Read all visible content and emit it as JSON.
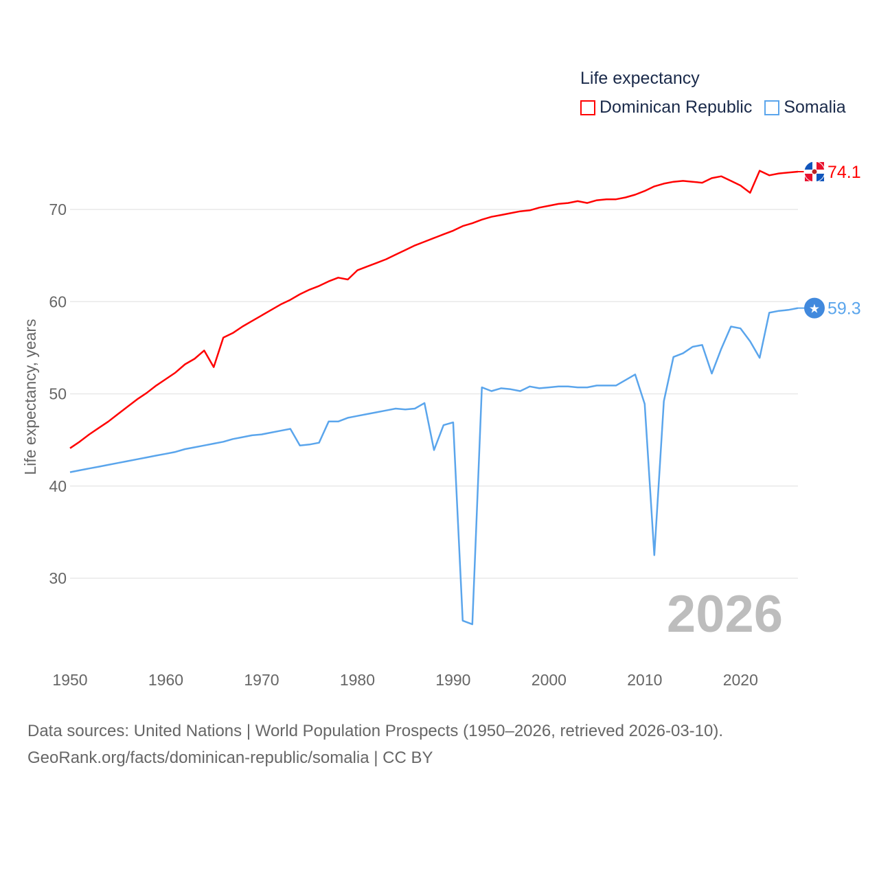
{
  "chart_data": {
    "type": "line",
    "title": "Life expectancy",
    "ylabel": "Life expectancy, years",
    "xlabel": "",
    "xlim": [
      1950,
      2026
    ],
    "ylim": [
      23,
      76
    ],
    "x_ticks": [
      1950,
      1960,
      1970,
      1980,
      1990,
      2000,
      2010,
      2020
    ],
    "y_ticks": [
      30,
      40,
      50,
      60,
      70
    ],
    "grid": true,
    "legend_position": "top-right",
    "year_watermark": "2026",
    "x": [
      1950,
      1951,
      1952,
      1953,
      1954,
      1955,
      1956,
      1957,
      1958,
      1959,
      1960,
      1961,
      1962,
      1963,
      1964,
      1965,
      1966,
      1967,
      1968,
      1969,
      1970,
      1971,
      1972,
      1973,
      1974,
      1975,
      1976,
      1977,
      1978,
      1979,
      1980,
      1981,
      1982,
      1983,
      1984,
      1985,
      1986,
      1987,
      1988,
      1989,
      1990,
      1991,
      1992,
      1993,
      1994,
      1995,
      1996,
      1997,
      1998,
      1999,
      2000,
      2001,
      2002,
      2003,
      2004,
      2005,
      2006,
      2007,
      2008,
      2009,
      2010,
      2011,
      2012,
      2013,
      2014,
      2015,
      2016,
      2017,
      2018,
      2019,
      2020,
      2021,
      2022,
      2023,
      2024,
      2025,
      2026
    ],
    "series": [
      {
        "name": "Dominican Republic",
        "color": "#ff0000",
        "end_label": "74.1",
        "marker_icon": "dominican-republic-flag-icon",
        "values": [
          44.1,
          44.8,
          45.6,
          46.3,
          47.0,
          47.8,
          48.6,
          49.4,
          50.1,
          50.9,
          51.6,
          52.3,
          53.2,
          53.8,
          54.7,
          52.9,
          56.1,
          56.6,
          57.3,
          57.9,
          58.5,
          59.1,
          59.7,
          60.2,
          60.8,
          61.3,
          61.7,
          62.2,
          62.6,
          62.4,
          63.4,
          63.8,
          64.2,
          64.6,
          65.1,
          65.6,
          66.1,
          66.5,
          66.9,
          67.3,
          67.7,
          68.2,
          68.5,
          68.9,
          69.2,
          69.4,
          69.6,
          69.8,
          69.9,
          70.2,
          70.4,
          70.6,
          70.7,
          70.9,
          70.7,
          71.0,
          71.1,
          71.1,
          71.3,
          71.6,
          72.0,
          72.5,
          72.8,
          73.0,
          73.1,
          73.0,
          72.9,
          73.4,
          73.6,
          73.1,
          72.6,
          71.8,
          74.2,
          73.7,
          73.9,
          74.0,
          74.1
        ]
      },
      {
        "name": "Somalia",
        "color": "#5aa5ec",
        "end_label": "59.3",
        "marker_icon": "somalia-flag-icon",
        "values": [
          41.5,
          41.7,
          41.9,
          42.1,
          42.3,
          42.5,
          42.7,
          42.9,
          43.1,
          43.3,
          43.5,
          43.7,
          44.0,
          44.2,
          44.4,
          44.6,
          44.8,
          45.1,
          45.3,
          45.5,
          45.6,
          45.8,
          46.0,
          46.2,
          44.4,
          44.5,
          44.7,
          47.0,
          47.0,
          47.4,
          47.6,
          47.8,
          48.0,
          48.2,
          48.4,
          48.3,
          48.4,
          49.0,
          43.9,
          46.6,
          46.9,
          25.4,
          25.0,
          50.7,
          50.3,
          50.6,
          50.5,
          50.3,
          50.8,
          50.6,
          50.7,
          50.8,
          50.8,
          50.7,
          50.7,
          50.9,
          50.9,
          50.9,
          51.5,
          52.1,
          48.9,
          32.5,
          49.2,
          54.0,
          54.4,
          55.1,
          55.3,
          52.2,
          54.9,
          57.3,
          57.1,
          55.7,
          53.9,
          58.8,
          59.0,
          59.1,
          59.3
        ]
      }
    ]
  },
  "source": {
    "line1": "Data sources: United Nations | World Population Prospects (1950–2026, retrieved 2026-03-10).",
    "line2": "GeoRank.org/facts/dominican-republic/somalia | CC BY"
  }
}
